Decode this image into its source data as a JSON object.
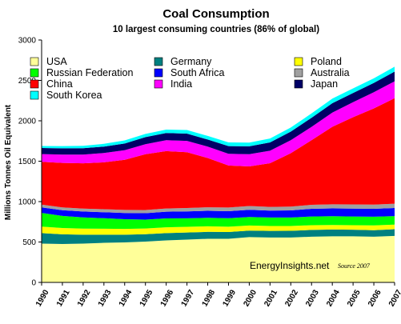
{
  "chart_data": {
    "type": "area",
    "stacked": true,
    "title": "Coal Consumption",
    "subtitle": "10 largest consuming countries (86% of global)",
    "ylabel": "Millions Tonnes Oil Equivalent",
    "xlabel": "",
    "ylim": [
      0,
      3000
    ],
    "yticks": [
      0,
      500,
      1000,
      1500,
      2000,
      2500,
      3000
    ],
    "grid": false,
    "legend_position": "top-left, inside plot",
    "x": [
      "1990",
      "1991",
      "1992",
      "1993",
      "1994",
      "1995",
      "1996",
      "1997",
      "1998",
      "1999",
      "2000",
      "2001",
      "2002",
      "2003",
      "2004",
      "2005",
      "2006",
      "2007"
    ],
    "series": [
      {
        "name": "USA",
        "color": "#ffff99",
        "values": [
          480,
          475,
          480,
          490,
          495,
          505,
          520,
          530,
          540,
          540,
          560,
          555,
          555,
          565,
          570,
          570,
          565,
          575
        ]
      },
      {
        "name": "Germany",
        "color": "#008080",
        "values": [
          130,
          120,
          110,
          100,
          95,
          92,
          90,
          88,
          86,
          84,
          82,
          83,
          84,
          85,
          84,
          82,
          82,
          83
        ]
      },
      {
        "name": "Poland",
        "color": "#ffff00",
        "values": [
          80,
          78,
          75,
          74,
          72,
          70,
          72,
          70,
          68,
          65,
          62,
          60,
          59,
          58,
          57,
          56,
          58,
          57
        ]
      },
      {
        "name": "Russian Federation",
        "color": "#00ff00",
        "values": [
          170,
          150,
          140,
          130,
          120,
          110,
          110,
          105,
          105,
          106,
          106,
          105,
          105,
          108,
          108,
          108,
          108,
          106
        ]
      },
      {
        "name": "South Africa",
        "color": "#0000ff",
        "values": [
          68,
          70,
          72,
          74,
          76,
          79,
          83,
          86,
          87,
          86,
          89,
          85,
          88,
          95,
          97,
          98,
          98,
          100
        ]
      },
      {
        "name": "Australia",
        "color": "#a0a0a0",
        "values": [
          35,
          36,
          37,
          38,
          39,
          40,
          40,
          42,
          44,
          46,
          47,
          47,
          48,
          49,
          50,
          51,
          52,
          53
        ]
      },
      {
        "name": "China",
        "color": "#ff0000",
        "values": [
          530,
          550,
          560,
          580,
          620,
          690,
          710,
          690,
          610,
          520,
          490,
          540,
          660,
          800,
          960,
          1080,
          1190,
          1305
        ]
      },
      {
        "name": "India",
        "color": "#ff00ff",
        "values": [
          95,
          102,
          108,
          115,
          120,
          125,
          135,
          140,
          140,
          145,
          150,
          155,
          160,
          165,
          175,
          185,
          200,
          210
        ]
      },
      {
        "name": "Japan",
        "color": "#000066",
        "values": [
          75,
          78,
          78,
          80,
          82,
          87,
          89,
          91,
          88,
          95,
          98,
          103,
          107,
          113,
          117,
          115,
          116,
          120
        ]
      },
      {
        "name": "South Korea",
        "color": "#00ffff",
        "values": [
          25,
          28,
          31,
          34,
          38,
          40,
          42,
          44,
          45,
          46,
          47,
          48,
          51,
          53,
          56,
          56,
          57,
          60
        ]
      }
    ]
  },
  "watermark": "EnergyInsights.net",
  "source_note": "Source 2007"
}
